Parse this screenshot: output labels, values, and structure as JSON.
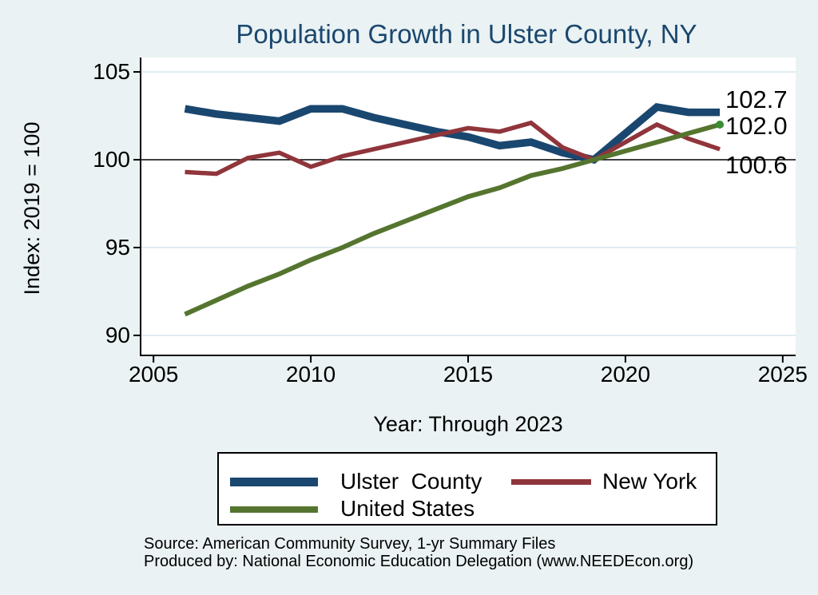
{
  "title": "Population Growth in Ulster County, NY",
  "footer": {
    "source_line": "Source: American Community Survey, 1-yr Summary Files",
    "produced_line": "Produced by: National Economic Education Delegation (www.NEEDEcon.org)"
  },
  "legend": {
    "entries": [
      {
        "label": "Ulster  County",
        "color": "#1A476F"
      },
      {
        "label": "New York",
        "color": "#90353B"
      },
      {
        "label": "United States",
        "color": "#55752F"
      }
    ]
  },
  "colors": {
    "background": "#EAF2F3",
    "plot_background": "#FFFFFF",
    "gridline": "#D9E8EF",
    "axis": "#000000",
    "title": "#1A476F",
    "ulster_county": "#1A476F",
    "new_york": "#90353B",
    "united_states": "#55752F",
    "end_marker": "#3A8E33"
  },
  "chart_data": {
    "type": "line",
    "title": "Population Growth in Ulster County, NY",
    "xlabel": "Year: Through 2023",
    "ylabel": "Index: 2019 = 100",
    "x_ticks": [
      2005,
      2010,
      2015,
      2020,
      2025
    ],
    "y_ticks": [
      90,
      95,
      100,
      105
    ],
    "xlim": [
      2004.59,
      2025.41
    ],
    "ylim": [
      88.86,
      105.82
    ],
    "grid": true,
    "reference_line_y": 100,
    "note": "No data point for 2020; lines connect 2019 directly to 2021",
    "x": [
      2006,
      2007,
      2008,
      2009,
      2010,
      2011,
      2012,
      2013,
      2014,
      2015,
      2016,
      2017,
      2018,
      2019,
      2021,
      2022,
      2023
    ],
    "series": [
      {
        "name": "Ulster County",
        "color": "#1A476F",
        "stroke_width": 9.5,
        "values": [
          102.9,
          102.6,
          102.4,
          102.2,
          102.9,
          102.9,
          102.4,
          102.0,
          101.6,
          101.3,
          100.8,
          101.0,
          100.4,
          100.0,
          103.0,
          102.7,
          102.7
        ]
      },
      {
        "name": "New York",
        "color": "#90353B",
        "stroke_width": 5.5,
        "values": [
          99.3,
          99.2,
          100.1,
          100.4,
          99.6,
          100.2,
          100.6,
          101.0,
          101.4,
          101.8,
          101.6,
          102.1,
          100.7,
          100.0,
          102.0,
          101.2,
          100.6
        ]
      },
      {
        "name": "United States",
        "color": "#55752F",
        "stroke_width": 6,
        "end_marker": true,
        "values": [
          91.2,
          92.0,
          92.8,
          93.5,
          94.3,
          95.0,
          95.8,
          96.5,
          97.2,
          97.9,
          98.4,
          99.1,
          99.5,
          100.0,
          101.0,
          101.5,
          102.0
        ]
      }
    ],
    "end_labels": [
      {
        "text": "102.7",
        "series": "Ulster County"
      },
      {
        "text": "102.0",
        "series": "United States"
      },
      {
        "text": "100.6",
        "series": "New York"
      }
    ],
    "legend_position": "bottom"
  }
}
